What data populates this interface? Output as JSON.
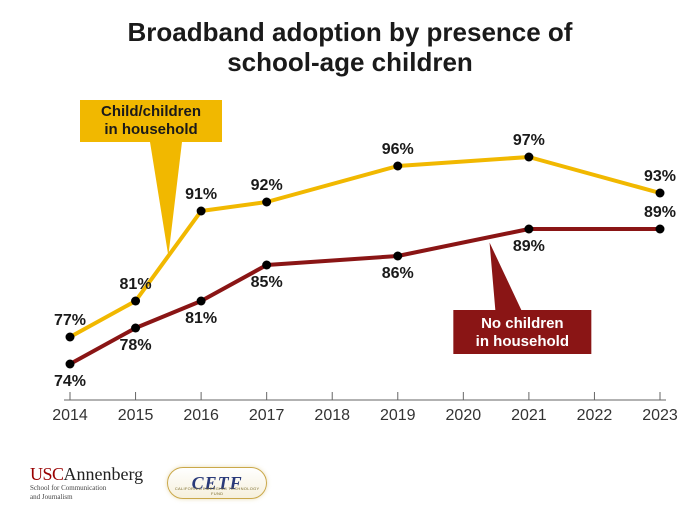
{
  "title_line1": "Broadband adoption by presence of",
  "title_line2": "school-age children",
  "title_fontsize": 26,
  "title_color": "#1a1a1a",
  "background_color": "#ffffff",
  "chart": {
    "type": "line",
    "x_years": [
      2014,
      2015,
      2016,
      2017,
      2018,
      2019,
      2020,
      2021,
      2022,
      2023
    ],
    "xlim": [
      2014,
      2023
    ],
    "ylim": [
      70,
      100
    ],
    "x_tick_fontsize": 16,
    "axis_color": "#666666",
    "tick_color": "#666666",
    "marker_radius": 4.5,
    "marker_fill": "#000000",
    "line_width": 4,
    "point_label_fontsize": 16,
    "point_label_color": "#1a1a1a",
    "series": {
      "with_children": {
        "label_line1": "Child/children",
        "label_line2": "in household",
        "color": "#f1b800",
        "callout_text_color": "#1a1a1a",
        "callout_bg": "#f1b800",
        "points": [
          {
            "x": 2014,
            "y": 77,
            "label": "77%",
            "pos": "above"
          },
          {
            "x": 2015,
            "y": 81,
            "label": "81%",
            "pos": "above"
          },
          {
            "x": 2016,
            "y": 91,
            "label": "91%",
            "pos": "above"
          },
          {
            "x": 2017,
            "y": 92,
            "label": "92%",
            "pos": "above"
          },
          {
            "x": 2019,
            "y": 96,
            "label": "96%",
            "pos": "above"
          },
          {
            "x": 2021,
            "y": 97,
            "label": "97%",
            "pos": "above"
          },
          {
            "x": 2023,
            "y": 93,
            "label": "93%",
            "pos": "above"
          }
        ]
      },
      "no_children": {
        "label_line1": "No children",
        "label_line2": "in household",
        "color": "#8a1515",
        "callout_text_color": "#ffffff",
        "callout_bg": "#8a1515",
        "points": [
          {
            "x": 2014,
            "y": 74,
            "label": "74%",
            "pos": "below"
          },
          {
            "x": 2015,
            "y": 78,
            "label": "78%",
            "pos": "below"
          },
          {
            "x": 2016,
            "y": 81,
            "label": "81%",
            "pos": "below"
          },
          {
            "x": 2017,
            "y": 85,
            "label": "85%",
            "pos": "below"
          },
          {
            "x": 2019,
            "y": 86,
            "label": "86%",
            "pos": "below"
          },
          {
            "x": 2021,
            "y": 89,
            "label": "89%",
            "pos": "below"
          },
          {
            "x": 2023,
            "y": 89,
            "label": "89%",
            "pos": "above"
          }
        ]
      }
    }
  },
  "logos": {
    "usc": {
      "text1": "USC",
      "text2": "Annenberg",
      "sub1": "School for Communication",
      "sub2": "and Journalism",
      "red": "#990000"
    },
    "cetf": {
      "text": "CETF",
      "sub": "CALIFORNIA EMERGING TECHNOLOGY FUND"
    }
  }
}
